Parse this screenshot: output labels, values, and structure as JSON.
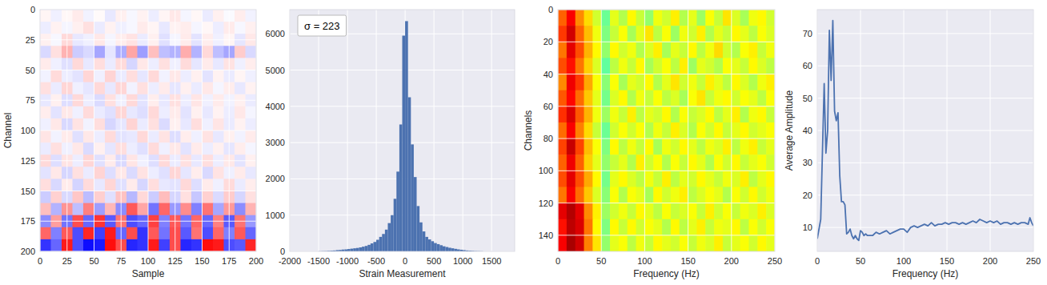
{
  "chart_data": [
    {
      "type": "heatmap",
      "x_label": "Sample",
      "y_label": "Channel",
      "color": "bwr",
      "grid": true,
      "xlim": [
        0,
        200
      ],
      "ylim": [
        200,
        0
      ],
      "xticks": [
        0,
        25,
        50,
        75,
        100,
        125,
        150,
        175,
        200
      ],
      "yticks": [
        0,
        25,
        50,
        75,
        100,
        125,
        150,
        175,
        200
      ],
      "color_range": [
        -1000,
        1000
      ],
      "cells": [
        [
          40,
          -60,
          30,
          80,
          -50,
          20,
          -90,
          60,
          -30,
          50,
          -70,
          40,
          90,
          -40,
          30,
          -80,
          60,
          -20,
          70,
          -50
        ],
        [
          -70,
          50,
          -40,
          60,
          120,
          -80,
          50,
          -60,
          -30,
          80,
          40,
          -90,
          50,
          70,
          -40,
          30,
          -70,
          80,
          -30,
          60
        ],
        [
          60,
          -30,
          150,
          -90,
          -60,
          90,
          -40,
          70,
          110,
          -80,
          60,
          -120,
          -40,
          80,
          -110,
          70,
          -60,
          40,
          -100,
          90
        ],
        [
          -150,
          120,
          300,
          -200,
          -150,
          -350,
          -100,
          -320,
          350,
          -380,
          250,
          -250,
          -300,
          320,
          -300,
          150,
          -250,
          -350,
          200,
          -150
        ],
        [
          80,
          -60,
          -120,
          150,
          -90,
          130,
          -80,
          140,
          -160,
          90,
          -70,
          120,
          -60,
          140,
          -100,
          80,
          -90,
          110,
          -60,
          70
        ],
        [
          -50,
          140,
          -70,
          -110,
          160,
          -60,
          170,
          -80,
          130,
          -100,
          150,
          -50,
          90,
          -70,
          60,
          -110,
          50,
          -80,
          40,
          -60
        ],
        [
          120,
          -80,
          160,
          -60,
          -100,
          150,
          -90,
          160,
          -50,
          120,
          -70,
          80,
          -100,
          60,
          -80,
          90,
          -40,
          70,
          -90,
          50
        ],
        [
          -90,
          60,
          -130,
          150,
          -70,
          -140,
          120,
          -60,
          150,
          -110,
          70,
          -90,
          120,
          -70,
          100,
          -60,
          80,
          -50,
          60,
          -80
        ],
        [
          70,
          -110,
          90,
          -60,
          140,
          -80,
          -120,
          160,
          -90,
          -130,
          150,
          -70,
          80,
          -110,
          60,
          -90,
          50,
          -70,
          90,
          -40
        ],
        [
          -60,
          90,
          -150,
          110,
          -50,
          130,
          -160,
          -100,
          170,
          -80,
          120,
          -140,
          60,
          -90,
          130,
          -60,
          100,
          -80,
          50,
          -70
        ],
        [
          100,
          -50,
          80,
          -120,
          90,
          -70,
          140,
          -110,
          -90,
          150,
          -80,
          110,
          -130,
          70,
          -60,
          110,
          -90,
          60,
          -50,
          80
        ],
        [
          -80,
          120,
          -60,
          90,
          -140,
          60,
          -100,
          130,
          -70,
          -120,
          140,
          -60,
          90,
          -110,
          80,
          -70,
          60,
          -100,
          70,
          -40
        ],
        [
          150,
          -130,
          110,
          -70,
          160,
          -120,
          80,
          -150,
          100,
          -60,
          -130,
          150,
          -80,
          120,
          -90,
          130,
          -70,
          90,
          -110,
          60
        ],
        [
          -110,
          90,
          -160,
          120,
          -80,
          170,
          -130,
          90,
          -140,
          110,
          -70,
          -120,
          160,
          -100,
          70,
          -150,
          110,
          -60,
          80,
          -90
        ],
        [
          130,
          -150,
          80,
          -170,
          140,
          -90,
          160,
          -120,
          80,
          -160,
          130,
          -90,
          -110,
          150,
          -130,
          80,
          -60,
          140,
          -80,
          70
        ],
        [
          -200,
          180,
          -150,
          220,
          -260,
          190,
          -120,
          240,
          -280,
          150,
          -200,
          260,
          -160,
          120,
          -220,
          180,
          -140,
          200,
          -160,
          120
        ],
        [
          250,
          -300,
          420,
          -250,
          500,
          -380,
          280,
          -450,
          650,
          350,
          -550,
          600,
          -400,
          450,
          -500,
          550,
          -350,
          400,
          -450,
          300
        ],
        [
          -450,
          380,
          -550,
          700,
          -600,
          800,
          -650,
          550,
          -700,
          -600,
          750,
          -500,
          650,
          -550,
          600,
          -600,
          500,
          -650,
          550,
          -400
        ],
        [
          600,
          -500,
          650,
          -700,
          850,
          -750,
          900,
          -600,
          700,
          -800,
          650,
          -550,
          700,
          -650,
          550,
          -700,
          600,
          -500,
          650,
          -600
        ],
        [
          -800,
          -600,
          900,
          -700,
          -950,
          -900,
          950,
          700,
          -850,
          -800,
          900,
          -750,
          700,
          -850,
          -800,
          950,
          900,
          -700,
          -650,
          850
        ]
      ]
    },
    {
      "type": "histogram",
      "x_label": "Strain Measurement",
      "annotation": "σ = 223",
      "color": "#4C72B0",
      "grid": true,
      "xlim": [
        -2000,
        1900
      ],
      "ylim": [
        0,
        6668
      ],
      "xticks": [
        -2000,
        -1500,
        -1000,
        -500,
        0,
        500,
        1000,
        1500
      ],
      "yticks": [
        0,
        1000,
        2000,
        3000,
        4000,
        5000,
        6000
      ],
      "bins": [
        -1500,
        -1450,
        -1400,
        -1350,
        -1300,
        -1250,
        -1200,
        -1150,
        -1100,
        -1050,
        -1000,
        -950,
        -900,
        -850,
        -800,
        -750,
        -700,
        -650,
        -600,
        -550,
        -500,
        -450,
        -400,
        -350,
        -300,
        -250,
        -200,
        -150,
        -100,
        -50,
        0,
        50,
        100,
        150,
        200,
        250,
        300,
        350,
        400,
        450,
        500,
        550,
        600,
        650,
        700,
        750,
        800,
        850,
        900,
        950,
        1000,
        1050,
        1100,
        1150,
        1200,
        1250,
        1300,
        1350
      ],
      "values": [
        5,
        8,
        10,
        15,
        20,
        25,
        35,
        40,
        50,
        55,
        65,
        75,
        85,
        95,
        110,
        130,
        150,
        180,
        220,
        260,
        320,
        400,
        480,
        600,
        780,
        1000,
        1450,
        2200,
        3500,
        5950,
        6350,
        4250,
        2950,
        2050,
        1250,
        800,
        550,
        400,
        330,
        280,
        230,
        200,
        170,
        140,
        120,
        100,
        85,
        70,
        55,
        45,
        35,
        25,
        20,
        15,
        10,
        8,
        5
      ]
    },
    {
      "type": "heatmap",
      "x_label": "Frequency (Hz)",
      "y_label": "Channels",
      "color": "jet",
      "grid": true,
      "xlim": [
        0,
        250
      ],
      "ylim": [
        150,
        0
      ],
      "xticks": [
        0,
        50,
        100,
        150,
        200,
        250
      ],
      "yticks": [
        0,
        20,
        40,
        60,
        80,
        100,
        120,
        140
      ],
      "color_range": [
        0,
        1
      ],
      "cells": [
        [
          0.78,
          0.88,
          0.74,
          0.66,
          0.58,
          0.48,
          0.6,
          0.55,
          0.63,
          0.57,
          0.52,
          0.61,
          0.58,
          0.64,
          0.55,
          0.6,
          0.53,
          0.62,
          0.57,
          0.65,
          0.59,
          0.54,
          0.61,
          0.63,
          0.58
        ],
        [
          0.82,
          0.92,
          0.78,
          0.69,
          0.61,
          0.5,
          0.57,
          0.62,
          0.54,
          0.6,
          0.65,
          0.56,
          0.62,
          0.53,
          0.61,
          0.58,
          0.64,
          0.55,
          0.6,
          0.57,
          0.63,
          0.6,
          0.56,
          0.62,
          0.59
        ],
        [
          0.76,
          0.9,
          0.8,
          0.7,
          0.63,
          0.52,
          0.63,
          0.58,
          0.61,
          0.55,
          0.59,
          0.64,
          0.54,
          0.6,
          0.57,
          0.63,
          0.56,
          0.61,
          0.66,
          0.58,
          0.55,
          0.62,
          0.64,
          0.57,
          0.61
        ],
        [
          0.8,
          0.86,
          0.76,
          0.67,
          0.59,
          0.47,
          0.56,
          0.61,
          0.57,
          0.63,
          0.54,
          0.58,
          0.62,
          0.56,
          0.64,
          0.53,
          0.6,
          0.58,
          0.55,
          0.62,
          0.6,
          0.57,
          0.63,
          0.59,
          0.56
        ],
        [
          0.74,
          0.89,
          0.82,
          0.71,
          0.62,
          0.51,
          0.62,
          0.54,
          0.6,
          0.58,
          0.63,
          0.55,
          0.6,
          0.65,
          0.58,
          0.61,
          0.57,
          0.64,
          0.6,
          0.56,
          0.63,
          0.59,
          0.55,
          0.61,
          0.64
        ],
        [
          0.79,
          0.87,
          0.77,
          0.68,
          0.6,
          0.49,
          0.59,
          0.63,
          0.55,
          0.61,
          0.57,
          0.62,
          0.56,
          0.59,
          0.54,
          0.62,
          0.65,
          0.57,
          0.61,
          0.63,
          0.58,
          0.62,
          0.6,
          0.56,
          0.62
        ],
        [
          0.83,
          0.91,
          0.79,
          0.7,
          0.61,
          0.53,
          0.61,
          0.57,
          0.64,
          0.56,
          0.6,
          0.58,
          0.63,
          0.55,
          0.62,
          0.57,
          0.59,
          0.63,
          0.56,
          0.6,
          0.64,
          0.55,
          0.61,
          0.63,
          0.57
        ],
        [
          0.77,
          0.88,
          0.75,
          0.66,
          0.57,
          0.48,
          0.58,
          0.62,
          0.58,
          0.62,
          0.55,
          0.61,
          0.57,
          0.64,
          0.59,
          0.55,
          0.62,
          0.58,
          0.63,
          0.57,
          0.6,
          0.63,
          0.58,
          0.6,
          0.62
        ],
        [
          0.81,
          0.93,
          0.81,
          0.69,
          0.62,
          0.5,
          0.63,
          0.56,
          0.61,
          0.57,
          0.63,
          0.54,
          0.61,
          0.58,
          0.63,
          0.6,
          0.56,
          0.61,
          0.59,
          0.64,
          0.56,
          0.61,
          0.64,
          0.57,
          0.6
        ],
        [
          0.78,
          0.89,
          0.78,
          0.67,
          0.6,
          0.52,
          0.57,
          0.6,
          0.55,
          0.64,
          0.58,
          0.62,
          0.55,
          0.62,
          0.57,
          0.63,
          0.6,
          0.55,
          0.62,
          0.58,
          0.63,
          0.57,
          0.6,
          0.62,
          0.58
        ],
        [
          0.8,
          0.9,
          0.8,
          0.71,
          0.63,
          0.49,
          0.6,
          0.63,
          0.59,
          0.56,
          0.61,
          0.57,
          0.64,
          0.56,
          0.6,
          0.58,
          0.63,
          0.6,
          0.57,
          0.61,
          0.59,
          0.64,
          0.56,
          0.6,
          0.63
        ],
        [
          0.76,
          0.88,
          0.77,
          0.68,
          0.59,
          0.51,
          0.62,
          0.55,
          0.62,
          0.6,
          0.54,
          0.63,
          0.58,
          0.61,
          0.64,
          0.56,
          0.59,
          0.62,
          0.6,
          0.55,
          0.62,
          0.58,
          0.63,
          0.58,
          0.61
        ],
        [
          0.9,
          0.95,
          0.9,
          0.74,
          0.64,
          0.53,
          0.58,
          0.61,
          0.57,
          0.63,
          0.6,
          0.56,
          0.62,
          0.57,
          0.59,
          0.62,
          0.57,
          0.64,
          0.58,
          0.62,
          0.57,
          0.61,
          0.59,
          0.64,
          0.59
        ],
        [
          0.86,
          0.94,
          0.91,
          0.76,
          0.63,
          0.5,
          0.63,
          0.57,
          0.63,
          0.58,
          0.62,
          0.6,
          0.55,
          0.63,
          0.56,
          0.6,
          0.64,
          0.57,
          0.61,
          0.6,
          0.63,
          0.56,
          0.62,
          0.58,
          0.62
        ],
        [
          0.88,
          0.96,
          0.92,
          0.75,
          0.65,
          0.52,
          0.6,
          0.62,
          0.56,
          0.61,
          0.57,
          0.63,
          0.6,
          0.58,
          0.62,
          0.57,
          0.61,
          0.59,
          0.64,
          0.57,
          0.6,
          0.62,
          0.58,
          0.63,
          0.6
        ]
      ]
    },
    {
      "type": "line",
      "x_label": "Frequency (Hz)",
      "y_label": "Average Amplitude",
      "color": "#4C72B0",
      "grid": true,
      "xlim": [
        0,
        250
      ],
      "ylim": [
        2.6,
        77.4
      ],
      "xticks": [
        0,
        50,
        100,
        150,
        200,
        250
      ],
      "yticks": [
        10,
        20,
        30,
        40,
        50,
        60,
        70
      ],
      "x": [
        0,
        4,
        8,
        10,
        12,
        14,
        16,
        18,
        20,
        22,
        24,
        26,
        28,
        30,
        32,
        34,
        36,
        38,
        40,
        42,
        44,
        46,
        48,
        50,
        52,
        54,
        56,
        58,
        60,
        64,
        68,
        72,
        76,
        80,
        84,
        88,
        92,
        96,
        100,
        104,
        108,
        112,
        116,
        120,
        124,
        128,
        132,
        136,
        140,
        144,
        148,
        152,
        156,
        160,
        164,
        168,
        172,
        176,
        180,
        184,
        188,
        192,
        196,
        200,
        204,
        208,
        212,
        216,
        220,
        224,
        228,
        232,
        236,
        240,
        244,
        246,
        248,
        250
      ],
      "values": [
        6.5,
        12.5,
        54.5,
        33,
        40,
        71,
        55.5,
        74,
        46,
        43,
        45.5,
        26,
        18,
        18,
        17,
        8,
        8.5,
        9.5,
        7.5,
        6.5,
        7.5,
        6.5,
        6,
        9,
        8.5,
        7.5,
        8,
        7.5,
        7.5,
        7.5,
        8.5,
        8,
        8.5,
        9,
        8,
        8.5,
        9,
        9.5,
        9.5,
        8.5,
        10,
        10.5,
        10,
        10.5,
        11,
        10.5,
        11.5,
        10.5,
        11,
        11,
        11.5,
        11,
        11.5,
        11.5,
        11,
        11.5,
        11,
        11.5,
        12,
        11.5,
        12.5,
        12,
        11.5,
        12,
        11.5,
        12,
        11,
        11.5,
        11.5,
        11,
        11.5,
        11,
        11.5,
        11.5,
        11,
        13,
        11.5,
        10.5
      ]
    }
  ]
}
